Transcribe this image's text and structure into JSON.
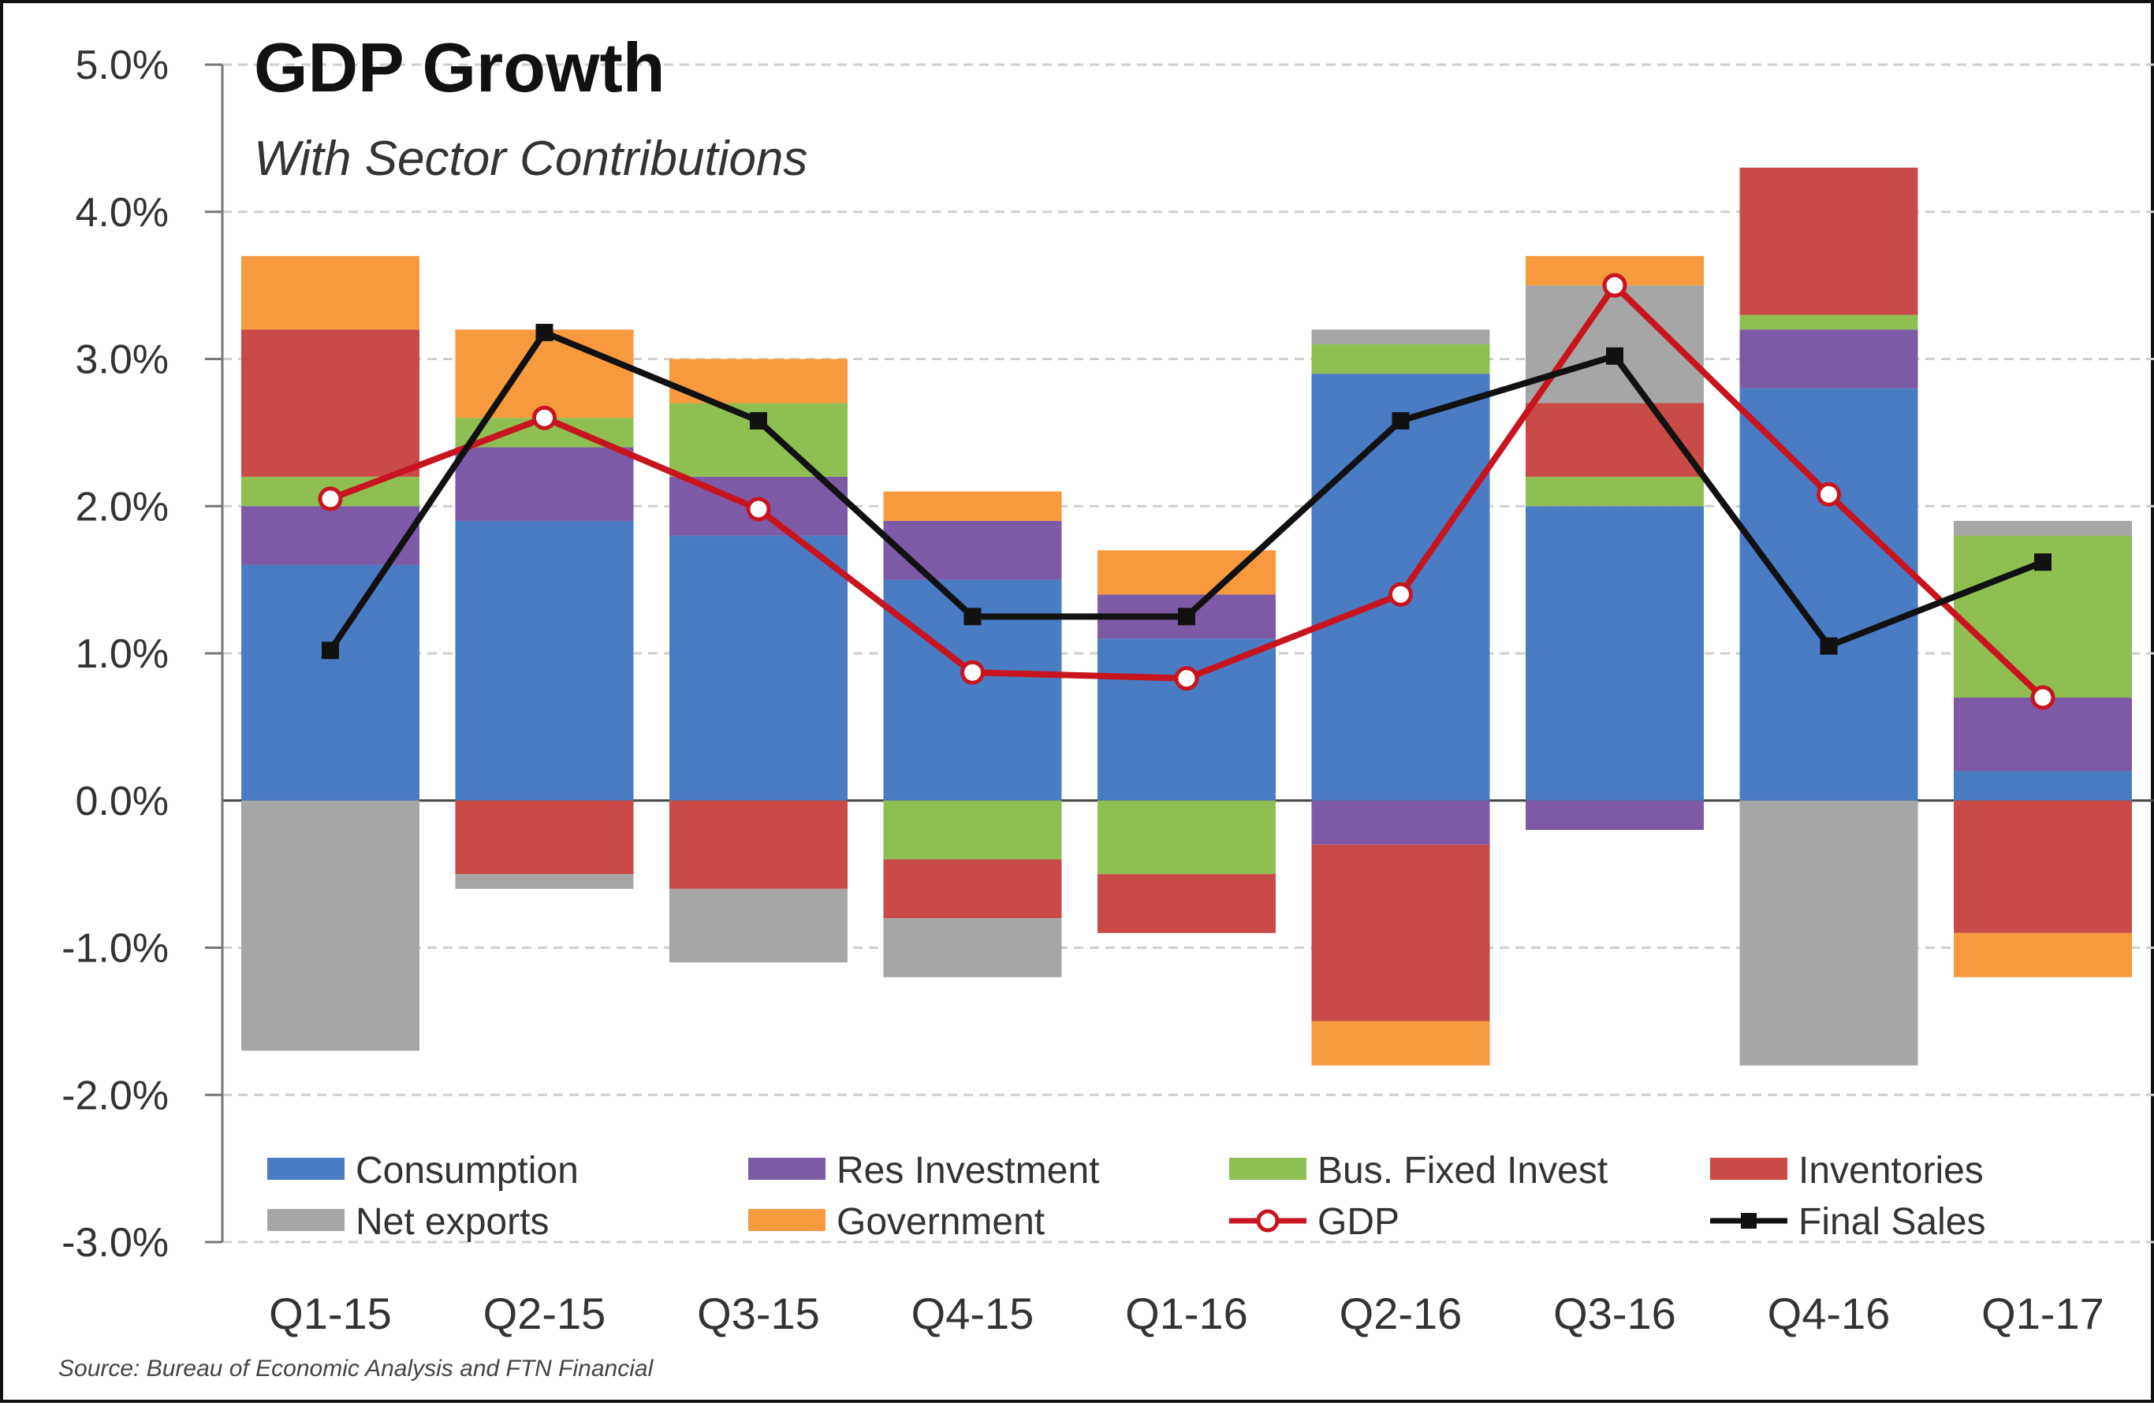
{
  "chart_data": {
    "type": "bar",
    "stacked": true,
    "title": "GDP Growth",
    "subtitle": "With Sector Contributions",
    "source": "Source: Bureau of Economic Analysis and FTN Financial",
    "categories": [
      "Q1-15",
      "Q2-15",
      "Q3-15",
      "Q4-15",
      "Q1-16",
      "Q2-16",
      "Q3-16",
      "Q4-16",
      "Q1-17"
    ],
    "ylim": [
      -3.0,
      5.0
    ],
    "yticks": [
      5.0,
      4.0,
      3.0,
      2.0,
      1.0,
      0.0,
      -1.0,
      -2.0,
      -3.0
    ],
    "ytick_labels": [
      "5.0%",
      "4.0%",
      "3.0%",
      "2.0%",
      "1.0%",
      "0.0%",
      "-1.0%",
      "-2.0%",
      "-3.0%"
    ],
    "grid": true,
    "legend_position": "bottom",
    "series": [
      {
        "name": "Consumption",
        "color": "#4a7cc4",
        "values": [
          1.6,
          1.9,
          1.8,
          1.5,
          1.1,
          2.9,
          2.0,
          2.8,
          0.2
        ]
      },
      {
        "name": "Res Investment",
        "color": "#7d5aa6",
        "values": [
          0.4,
          0.5,
          0.4,
          0.4,
          0.3,
          -0.3,
          -0.2,
          0.4,
          0.5
        ]
      },
      {
        "name": "Bus. Fixed Invest",
        "color": "#8fbf52",
        "values": [
          0.2,
          0.2,
          0.5,
          -0.4,
          -0.5,
          0.2,
          0.2,
          0.1,
          1.1
        ]
      },
      {
        "name": "Inventories",
        "color": "#c94a47",
        "values": [
          1.0,
          -0.5,
          -0.6,
          -0.4,
          -0.4,
          -1.2,
          0.5,
          1.0,
          -0.9
        ]
      },
      {
        "name": "Net exports",
        "color": "#a6a6a6",
        "values": [
          -1.7,
          -0.1,
          -0.5,
          -0.4,
          0.0,
          0.1,
          0.8,
          -1.8,
          0.1
        ]
      },
      {
        "name": "Government",
        "color": "#f79a3e",
        "values": [
          0.5,
          0.6,
          0.3,
          0.2,
          0.3,
          -0.3,
          0.2,
          0.0,
          -0.3
        ]
      }
    ],
    "lines": [
      {
        "name": "GDP",
        "color": "#c8141e",
        "marker": "open-circle",
        "values": [
          2.05,
          2.6,
          1.98,
          0.87,
          0.83,
          1.4,
          3.5,
          2.08,
          0.7
        ]
      },
      {
        "name": "Final Sales",
        "color": "#111111",
        "marker": "filled-square",
        "values": [
          1.02,
          3.18,
          2.58,
          1.25,
          1.25,
          2.58,
          3.02,
          1.05,
          1.62
        ]
      }
    ]
  }
}
